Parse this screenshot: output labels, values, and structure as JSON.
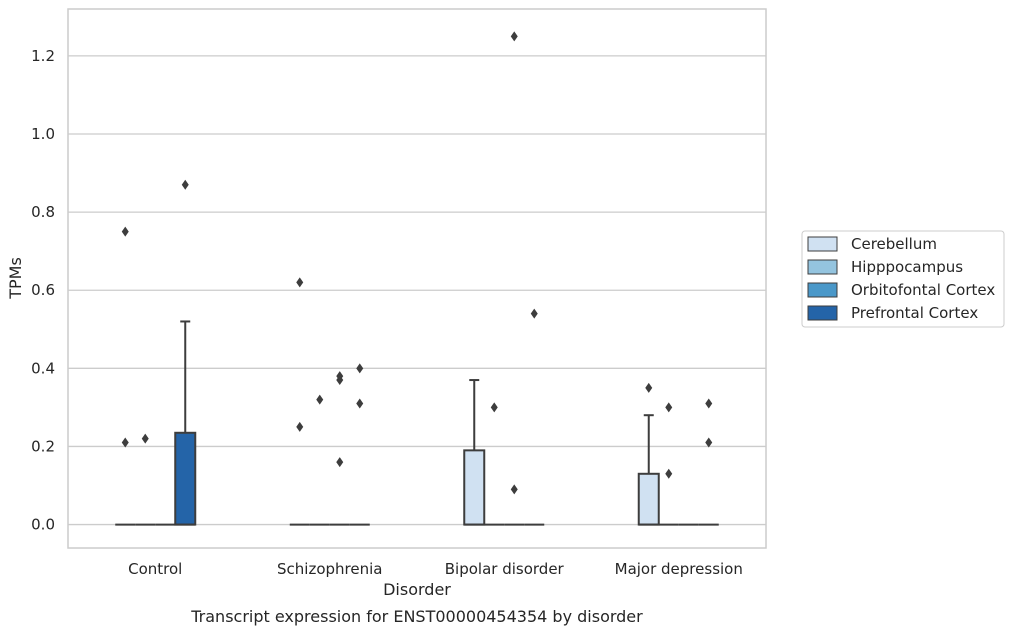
{
  "chart_data": {
    "type": "box",
    "title": "Transcript expression for ENST00000454354 by disorder",
    "xlabel": "Disorder",
    "ylabel": "TPMs",
    "ylim": [
      -0.06,
      1.32
    ],
    "yticks": [
      0.0,
      0.2,
      0.4,
      0.6,
      0.8,
      1.0,
      1.2
    ],
    "ytick_labels": [
      "0.0",
      "0.2",
      "0.4",
      "0.6",
      "0.8",
      "1.0",
      "1.2"
    ],
    "grid": true,
    "legend_position": "right",
    "categories": [
      "Control",
      "Schizophrenia",
      "Bipolar disorder",
      "Major depression"
    ],
    "series": [
      {
        "name": "Cerebellum",
        "color": "#d0e1f2",
        "boxes": [
          {
            "q1": 0,
            "median": 0,
            "q3": 0,
            "whisker_low": 0,
            "whisker_high": 0,
            "outliers": [
              0.21,
              0.75
            ]
          },
          {
            "q1": 0,
            "median": 0,
            "q3": 0,
            "whisker_low": 0,
            "whisker_high": 0,
            "outliers": [
              0.25,
              0.62
            ]
          },
          {
            "q1": 0,
            "median": 0,
            "q3": 0.19,
            "whisker_low": 0,
            "whisker_high": 0.37,
            "outliers": []
          },
          {
            "q1": 0,
            "median": 0,
            "q3": 0.13,
            "whisker_low": 0,
            "whisker_high": 0.28,
            "outliers": [
              0.35
            ]
          }
        ]
      },
      {
        "name": "Hipppocampus",
        "color": "#94c4df",
        "boxes": [
          {
            "q1": 0,
            "median": 0,
            "q3": 0,
            "whisker_low": 0,
            "whisker_high": 0,
            "outliers": [
              0.22
            ]
          },
          {
            "q1": 0,
            "median": 0,
            "q3": 0,
            "whisker_low": 0,
            "whisker_high": 0,
            "outliers": [
              0.32
            ]
          },
          {
            "q1": 0,
            "median": 0,
            "q3": 0,
            "whisker_low": 0,
            "whisker_high": 0,
            "outliers": [
              0.3
            ]
          },
          {
            "q1": 0,
            "median": 0,
            "q3": 0,
            "whisker_low": 0,
            "whisker_high": 0,
            "outliers": [
              0.13,
              0.3
            ]
          }
        ]
      },
      {
        "name": "Orbitofontal Cortex",
        "color": "#4a98c9",
        "boxes": [
          {
            "q1": 0,
            "median": 0,
            "q3": 0,
            "whisker_low": 0,
            "whisker_high": 0,
            "outliers": []
          },
          {
            "q1": 0,
            "median": 0,
            "q3": 0,
            "whisker_low": 0,
            "whisker_high": 0,
            "outliers": [
              0.16,
              0.37,
              0.38
            ]
          },
          {
            "q1": 0,
            "median": 0,
            "q3": 0,
            "whisker_low": 0,
            "whisker_high": 0,
            "outliers": [
              0.09,
              1.25
            ]
          },
          {
            "q1": 0,
            "median": 0,
            "q3": 0,
            "whisker_low": 0,
            "whisker_high": 0,
            "outliers": []
          }
        ]
      },
      {
        "name": "Prefrontal Cortex",
        "color": "#2464a8",
        "boxes": [
          {
            "q1": 0,
            "median": 0,
            "q3": 0.235,
            "whisker_low": 0,
            "whisker_high": 0.52,
            "outliers": [
              0.87
            ]
          },
          {
            "q1": 0,
            "median": 0,
            "q3": 0,
            "whisker_low": 0,
            "whisker_high": 0,
            "outliers": [
              0.31,
              0.4
            ]
          },
          {
            "q1": 0,
            "median": 0,
            "q3": 0,
            "whisker_low": 0,
            "whisker_high": 0,
            "outliers": [
              0.54
            ]
          },
          {
            "q1": 0,
            "median": 0,
            "q3": 0,
            "whisker_low": 0,
            "whisker_high": 0,
            "outliers": [
              0.21,
              0.31
            ]
          }
        ]
      }
    ]
  }
}
